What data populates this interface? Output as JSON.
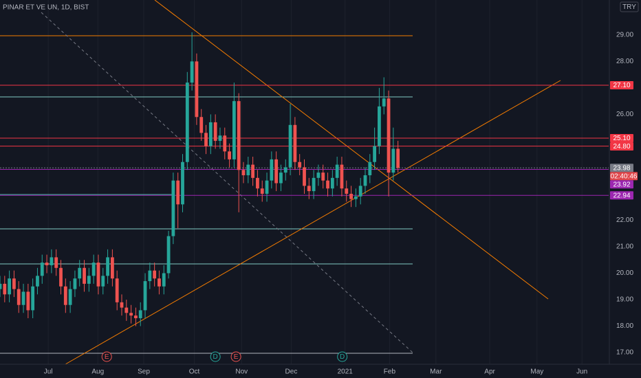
{
  "chart_data": {
    "type": "candlestick",
    "title": "PINAR ET VE UN, 1D, BIST",
    "currency": "TRY",
    "countdown": "02:40:46",
    "up_color": "#26a69a",
    "down_color": "#ef5350",
    "grid": true,
    "xlim": [
      0,
      130
    ],
    "xticks": [
      {
        "value": 10.3,
        "label": "Jul"
      },
      {
        "value": 20.9,
        "label": "Aug"
      },
      {
        "value": 30.7,
        "label": "Sep"
      },
      {
        "value": 41.5,
        "label": "Oct"
      },
      {
        "value": 51.6,
        "label": "Nov"
      },
      {
        "value": 62.2,
        "label": "Dec"
      },
      {
        "value": 73.7,
        "label": "2021"
      },
      {
        "value": 83.2,
        "label": "Feb"
      },
      {
        "value": 93.1,
        "label": "Mar"
      },
      {
        "value": 104.6,
        "label": "Apr"
      },
      {
        "value": 114.7,
        "label": "May"
      },
      {
        "value": 124.3,
        "label": "Jun"
      }
    ],
    "ylim": [
      16.56,
      30.32
    ],
    "yticks": [
      {
        "value": 17,
        "label": "17.00"
      },
      {
        "value": 18,
        "label": "18.00"
      },
      {
        "value": 19,
        "label": "19.00"
      },
      {
        "value": 20,
        "label": "20.00"
      },
      {
        "value": 21,
        "label": "21.00"
      },
      {
        "value": 22,
        "label": "22.00"
      },
      {
        "value": 26,
        "label": "26.00"
      },
      {
        "value": 28,
        "label": "28.00"
      },
      {
        "value": 29,
        "label": "29.00"
      }
    ],
    "open": [
      19.4,
      19.6,
      19.2,
      19.8,
      19.4,
      18.8,
      19.3,
      18.6,
      19.5,
      19.9,
      20.4,
      20.3,
      20.6,
      20.2,
      19.5,
      18.8,
      19.4,
      19.8,
      20.2,
      19.6,
      19.9,
      20.4,
      19.5,
      19.9,
      20.6,
      19.8,
      18.9,
      18.7,
      18.5,
      18.4,
      18.3,
      18.6,
      19.7,
      20.1,
      19.8,
      19.5,
      20.0,
      21.4,
      23.5,
      22.6,
      24.2,
      27.2,
      28.0,
      25.9,
      25.3,
      24.8,
      25.7,
      25.0,
      25.2,
      24.6,
      24.3,
      26.5,
      23.9,
      23.7,
      24.1,
      23.6,
      23.2,
      23.0,
      23.5,
      24.3,
      23.4,
      23.8,
      24.0,
      25.6,
      24.2,
      24.0,
      23.3,
      23.1,
      23.6,
      23.8,
      23.5,
      23.2,
      23.6,
      24.1,
      23.2,
      23.0,
      22.8,
      22.9,
      23.3,
      23.7,
      24.2,
      24.8,
      26.3,
      26.6,
      23.8,
      24.7
    ],
    "high": [
      19.9,
      19.9,
      20.1,
      20.1,
      19.7,
      19.6,
      19.6,
      19.8,
      20.2,
      20.7,
      20.7,
      20.9,
      20.9,
      20.5,
      19.8,
      19.7,
      20.1,
      20.5,
      20.5,
      20.2,
      20.7,
      20.7,
      20.2,
      20.9,
      20.9,
      20.1,
      19.2,
      19.0,
      18.8,
      18.7,
      18.9,
      20.0,
      20.4,
      20.4,
      20.1,
      20.3,
      21.6,
      23.8,
      23.8,
      24.5,
      27.6,
      29.1,
      28.3,
      26.2,
      25.6,
      26.0,
      26.0,
      25.5,
      25.5,
      24.9,
      27.2,
      26.8,
      24.2,
      24.4,
      24.4,
      23.9,
      23.5,
      23.8,
      24.6,
      24.6,
      24.1,
      24.3,
      26.4,
      25.9,
      24.5,
      24.3,
      23.6,
      23.9,
      24.1,
      24.1,
      23.8,
      23.9,
      24.4,
      24.4,
      23.5,
      23.3,
      23.2,
      23.6,
      24.0,
      24.5,
      25.5,
      27.0,
      27.4,
      26.9,
      25.5,
      25.0
    ],
    "low": [
      19.1,
      18.9,
      18.9,
      19.1,
      18.5,
      18.5,
      18.3,
      18.3,
      19.2,
      19.6,
      20.0,
      20.0,
      19.9,
      19.2,
      18.5,
      18.5,
      19.1,
      19.5,
      19.3,
      19.3,
      19.6,
      19.2,
      19.2,
      19.6,
      19.5,
      18.6,
      18.4,
      18.2,
      18.1,
      18.0,
      18.0,
      18.3,
      19.4,
      19.5,
      19.2,
      19.2,
      19.8,
      21.1,
      21.7,
      22.3,
      23.9,
      26.9,
      25.6,
      25.0,
      24.5,
      24.5,
      24.7,
      24.7,
      24.3,
      24.0,
      24.0,
      22.3,
      23.4,
      23.4,
      23.3,
      22.9,
      22.7,
      22.7,
      23.2,
      23.1,
      23.1,
      23.5,
      23.7,
      23.9,
      23.7,
      23.0,
      22.8,
      22.8,
      23.3,
      23.2,
      22.9,
      22.9,
      23.3,
      22.9,
      22.7,
      22.5,
      22.5,
      22.6,
      23.0,
      23.4,
      23.9,
      24.5,
      26.0,
      22.9,
      23.5,
      23.8
    ],
    "close": [
      19.6,
      19.2,
      19.8,
      19.4,
      18.8,
      19.3,
      18.6,
      19.5,
      19.9,
      20.4,
      20.3,
      20.6,
      20.2,
      19.5,
      18.8,
      19.4,
      19.8,
      20.2,
      19.6,
      19.9,
      20.4,
      19.5,
      19.9,
      20.6,
      19.8,
      18.9,
      18.7,
      18.5,
      18.4,
      18.3,
      18.6,
      19.7,
      20.1,
      19.8,
      19.5,
      20.0,
      21.4,
      23.5,
      22.6,
      24.2,
      27.2,
      28.0,
      25.9,
      25.3,
      24.8,
      25.7,
      25.0,
      25.2,
      24.6,
      24.3,
      26.5,
      23.9,
      23.7,
      24.1,
      23.6,
      23.2,
      23.0,
      23.5,
      24.3,
      23.4,
      23.8,
      24.0,
      25.6,
      24.2,
      24.0,
      23.3,
      23.1,
      23.6,
      23.8,
      23.5,
      23.2,
      23.6,
      24.1,
      23.2,
      23.0,
      22.8,
      22.9,
      23.3,
      23.7,
      24.2,
      24.8,
      26.3,
      26.6,
      23.8,
      24.7,
      23.98
    ],
    "levels": [
      {
        "label": "27.10",
        "value": 27.1,
        "color": "#f23645"
      },
      {
        "label": "25.10",
        "value": 25.1,
        "color": "#f23645"
      },
      {
        "label": "24.80",
        "value": 24.8,
        "color": "#f23645"
      },
      {
        "label": "23.98",
        "value": 23.98,
        "color": "#787b86"
      },
      {
        "label": "23.92",
        "value": 23.92,
        "color": "#9c27b0"
      },
      {
        "label": "22.94",
        "value": 22.94,
        "color": "#9c27b0"
      }
    ],
    "events": [
      {
        "label": "E",
        "x": 22.8,
        "color": "#ef5350"
      },
      {
        "label": "D",
        "x": 46,
        "color": "#26a69a"
      },
      {
        "label": "E",
        "x": 50.4,
        "color": "#ef5350"
      },
      {
        "label": "D",
        "x": 73.1,
        "color": "#26a69a"
      }
    ]
  }
}
